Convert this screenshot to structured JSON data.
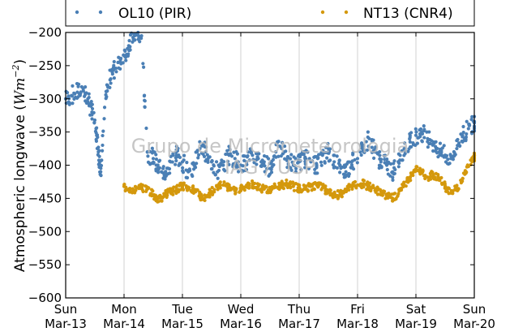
{
  "chart_data": {
    "type": "scatter",
    "title": "",
    "xlabel": "",
    "ylabel": "Atmospheric longwave (Wm^-2)",
    "ylabel_parts": {
      "text": "Atmospheric longwave (",
      "unit_main": "Wm",
      "unit_exp": "−2",
      "close": ")"
    },
    "ylim": [
      -600,
      -200
    ],
    "yticks": [
      -200,
      -250,
      -300,
      -350,
      -400,
      -450,
      -500,
      -550,
      -600
    ],
    "xlim": [
      0,
      7
    ],
    "xticks": [
      {
        "x": 0,
        "line1": "Sun",
        "line2": "Mar-13"
      },
      {
        "x": 1,
        "line1": "Mon",
        "line2": "Mar-14"
      },
      {
        "x": 2,
        "line1": "Tue",
        "line2": "Mar-15"
      },
      {
        "x": 3,
        "line1": "Wed",
        "line2": "Mar-16"
      },
      {
        "x": 4,
        "line1": "Thu",
        "line2": "Mar-17"
      },
      {
        "x": 5,
        "line1": "Fri",
        "line2": "Mar-18"
      },
      {
        "x": 6,
        "line1": "Sat",
        "line2": "Mar-19"
      },
      {
        "x": 7,
        "line1": "Sun",
        "line2": "Mar-20"
      }
    ],
    "grid": "vertical",
    "legend_position": "top",
    "watermark": [
      "Grupo de Micrometeorologia",
      "IAG / USP"
    ],
    "series": [
      {
        "name": "OL10 (PIR)",
        "color": "#4a7fb5",
        "x": [
          0.0,
          0.1,
          0.2,
          0.3,
          0.38,
          0.45,
          0.52,
          0.56,
          0.6,
          0.66,
          0.72,
          0.8,
          0.9,
          1.0,
          1.08,
          1.16,
          1.24,
          1.3,
          1.4,
          1.5,
          1.58,
          1.64,
          1.72,
          1.8,
          1.9,
          2.0,
          2.1,
          2.2,
          2.3,
          2.4,
          2.5,
          2.6,
          2.7,
          2.8,
          2.9,
          3.0,
          3.1,
          3.2,
          3.3,
          3.4,
          3.5,
          3.6,
          3.7,
          3.8,
          3.9,
          4.0,
          4.1,
          4.2,
          4.3,
          4.4,
          4.5,
          4.6,
          4.7,
          4.8,
          4.9,
          5.0,
          5.1,
          5.2,
          5.3,
          5.4,
          5.5,
          5.6,
          5.7,
          5.8,
          5.9,
          6.0,
          6.1,
          6.2,
          6.3,
          6.4,
          6.5,
          6.6,
          6.7,
          6.8,
          6.9,
          7.0
        ],
        "y": [
          -300,
          -295,
          -290,
          -285,
          -300,
          -320,
          -345,
          -380,
          -410,
          -330,
          -280,
          -260,
          -245,
          -235,
          -220,
          -210,
          -200,
          -205,
          -380,
          -390,
          -400,
          -410,
          -415,
          -395,
          -385,
          -395,
          -410,
          -400,
          -375,
          -380,
          -395,
          -410,
          -400,
          -385,
          -390,
          -400,
          -395,
          -385,
          -390,
          -395,
          -405,
          -380,
          -375,
          -390,
          -400,
          -395,
          -390,
          -395,
          -400,
          -385,
          -380,
          -395,
          -400,
          -410,
          -395,
          -390,
          -370,
          -360,
          -380,
          -395,
          -400,
          -410,
          -395,
          -375,
          -365,
          -355,
          -350,
          -360,
          -365,
          -380,
          -385,
          -390,
          -375,
          -355,
          -345,
          -335
        ]
      },
      {
        "name": "NT13 (CNR4)",
        "color": "#d4980c",
        "x": [
          1.0,
          1.1,
          1.2,
          1.3,
          1.4,
          1.5,
          1.58,
          1.66,
          1.74,
          1.82,
          1.9,
          2.0,
          2.1,
          2.2,
          2.3,
          2.4,
          2.5,
          2.6,
          2.7,
          2.8,
          2.9,
          3.0,
          3.1,
          3.2,
          3.3,
          3.4,
          3.5,
          3.6,
          3.7,
          3.8,
          3.9,
          4.0,
          4.1,
          4.2,
          4.3,
          4.4,
          4.5,
          4.6,
          4.7,
          4.8,
          4.9,
          5.0,
          5.1,
          5.2,
          5.3,
          5.4,
          5.5,
          5.6,
          5.7,
          5.8,
          5.9,
          6.0,
          6.1,
          6.2,
          6.3,
          6.4,
          6.5,
          6.6,
          6.7,
          6.8,
          6.9,
          7.0
        ],
        "y": [
          -432,
          -435,
          -438,
          -433,
          -436,
          -445,
          -450,
          -448,
          -442,
          -440,
          -436,
          -432,
          -433,
          -437,
          -446,
          -448,
          -440,
          -432,
          -430,
          -433,
          -437,
          -436,
          -430,
          -428,
          -432,
          -436,
          -438,
          -433,
          -430,
          -428,
          -432,
          -435,
          -436,
          -432,
          -430,
          -434,
          -441,
          -446,
          -444,
          -438,
          -432,
          -430,
          -428,
          -432,
          -438,
          -440,
          -446,
          -450,
          -443,
          -430,
          -418,
          -406,
          -412,
          -418,
          -414,
          -420,
          -432,
          -442,
          -435,
          -420,
          -402,
          -388
        ]
      }
    ]
  }
}
